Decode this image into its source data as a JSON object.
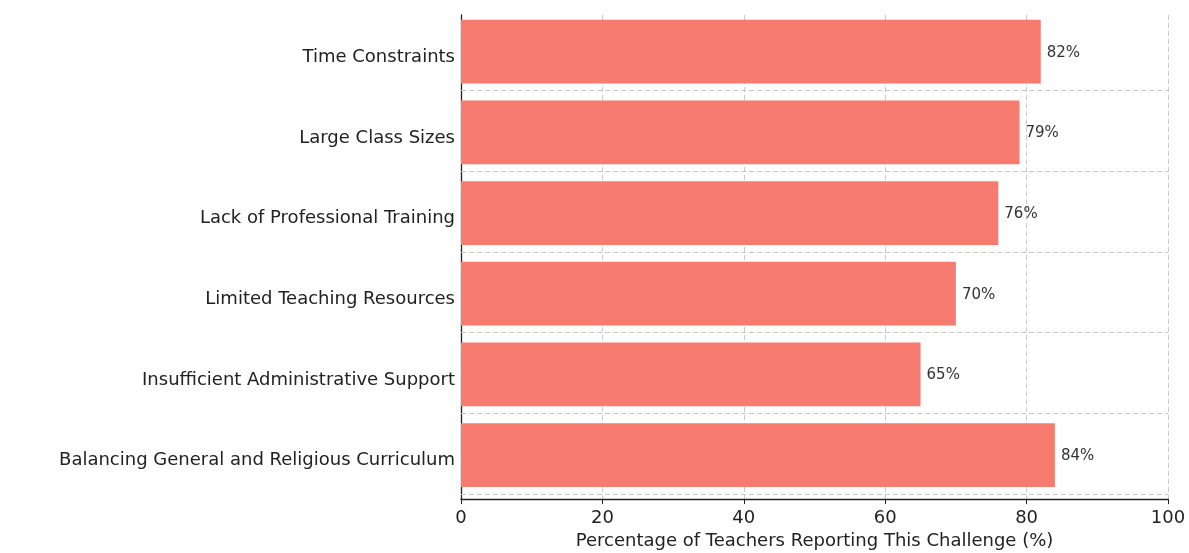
{
  "chart_data": {
    "type": "bar",
    "orientation": "horizontal",
    "xlabel": "Percentage of Teachers Reporting This Challenge (%)",
    "categories": [
      "Time Constraints",
      "Large Class Sizes",
      "Lack of Professional Training",
      "Limited Teaching Resources",
      "Insufficient Administrative Support",
      "Balancing General and Religious Curriculum"
    ],
    "values": [
      82,
      79,
      76,
      70,
      65,
      84
    ],
    "value_labels": [
      "82%",
      "79%",
      "76%",
      "70%",
      "65%",
      "84%"
    ],
    "color": "#f77b6f",
    "xlim": [
      0,
      100
    ],
    "xticks": [
      0,
      20,
      40,
      60,
      80,
      100
    ],
    "grid": true
  }
}
